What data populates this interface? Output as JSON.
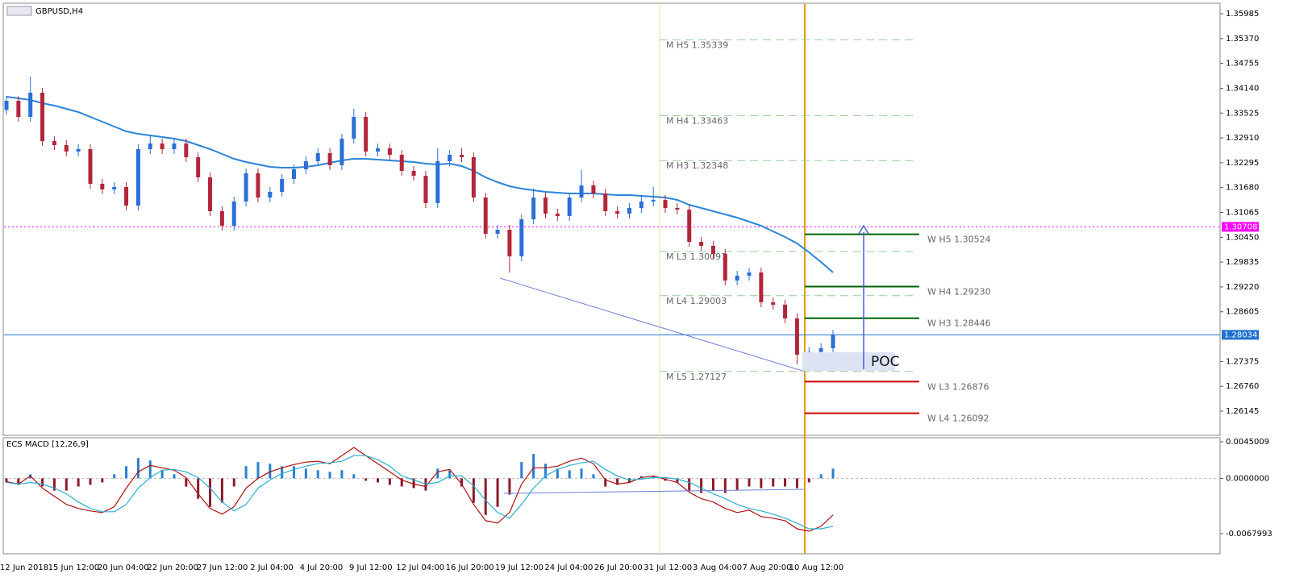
{
  "chart_data": [
    {
      "type": "candlestick",
      "title": "GBPUSD,H4",
      "up_color": "#2a6fd6",
      "down_color": "#b3263a",
      "ylim": [
        1.25546,
        1.36225
      ],
      "yticks": [
        1.35985,
        {
          "value": 1.3537,
          "label": "1.35370"
        },
        1.34755,
        {
          "value": 1.3414,
          "label": "1.34140"
        },
        1.33525,
        {
          "value": 1.3291,
          "label": "1.32910"
        },
        1.32295,
        {
          "value": 1.3168,
          "label": "1.31680"
        },
        1.31065,
        {
          "value": 1.3045,
          "label": "1.30450"
        },
        1.29835,
        {
          "value": 1.2922,
          "label": "1.29220"
        },
        1.28605,
        1.27375,
        {
          "value": 1.2676,
          "label": "1.26760"
        },
        1.26145
      ],
      "open": [
        1.336,
        1.3383,
        1.3343,
        1.34029,
        1.32832,
        1.32732,
        1.32572,
        1.32632,
        1.31774,
        1.31634,
        1.31694,
        1.31235,
        1.32632,
        1.32772,
        1.32632,
        1.32772,
        1.32432,
        1.31933,
        1.31095,
        1.30736,
        1.31335,
        1.32033,
        1.31434,
        1.31574,
        1.31893,
        1.32133,
        1.32333,
        1.32532,
        1.32233,
        1.32891,
        1.3343,
        1.32572,
        1.32652,
        1.32492,
        1.32093,
        1.31973,
        1.31295,
        1.32333,
        1.32492,
        1.32432,
        1.31434,
        1.30536,
        1.30636,
        1.29977,
        1.30895,
        1.31434,
        1.31035,
        1.30975,
        1.31434,
        1.31734,
        1.31534,
        1.31095,
        1.31035,
        1.31175,
        1.31335,
        1.31375,
        1.31175,
        1.31135,
        1.30337,
        1.30237,
        1.30037,
        1.29379,
        1.29498,
        1.29578,
        1.2884,
        1.2878,
        1.2844,
        1.27542,
        1.2761,
        1.27702
      ],
      "high": [
        1.3395,
        1.3395,
        1.34429,
        1.34149,
        1.32952,
        1.32852,
        1.32752,
        1.32752,
        1.31894,
        1.31814,
        1.31814,
        1.32752,
        1.32992,
        1.32892,
        1.32892,
        1.32892,
        1.32552,
        1.32053,
        1.31215,
        1.31455,
        1.32153,
        1.32153,
        1.31694,
        1.32013,
        1.32253,
        1.32453,
        1.32652,
        1.32652,
        1.33011,
        1.3363,
        1.3355,
        1.32772,
        1.32772,
        1.32612,
        1.32213,
        1.32093,
        1.32653,
        1.32612,
        1.32652,
        1.32552,
        1.31554,
        1.30756,
        1.30756,
        1.31015,
        1.31654,
        1.31554,
        1.31155,
        1.31554,
        1.32114,
        1.31854,
        1.31654,
        1.31215,
        1.31295,
        1.31455,
        1.31695,
        1.31495,
        1.31295,
        1.31255,
        1.30457,
        1.30357,
        1.30157,
        1.29618,
        1.29698,
        1.29698,
        1.2896,
        1.289,
        1.2856,
        1.2773,
        1.27822,
        1.28154
      ],
      "low": [
        1.3348,
        1.3331,
        1.3331,
        1.32712,
        1.32612,
        1.32452,
        1.32452,
        1.31654,
        1.31514,
        1.31514,
        1.31115,
        1.31115,
        1.32512,
        1.32512,
        1.32512,
        1.32312,
        1.31813,
        1.30975,
        1.30616,
        1.30616,
        1.31215,
        1.31314,
        1.31314,
        1.31454,
        1.31773,
        1.32013,
        1.32213,
        1.32113,
        1.32113,
        1.32771,
        1.32452,
        1.32452,
        1.32372,
        1.31973,
        1.31853,
        1.31175,
        1.31175,
        1.32213,
        1.32312,
        1.31314,
        1.30416,
        1.30416,
        1.29577,
        1.29857,
        1.30775,
        1.30915,
        1.30855,
        1.30855,
        1.31314,
        1.31414,
        1.30975,
        1.30915,
        1.30915,
        1.31055,
        1.31215,
        1.31055,
        1.31015,
        1.30217,
        1.30117,
        1.29917,
        1.29259,
        1.29259,
        1.29378,
        1.2872,
        1.2866,
        1.2832,
        1.273,
        1.27422,
        1.2749,
        1.27582
      ],
      "close": [
        1.3383,
        1.3343,
        1.34029,
        1.32832,
        1.32732,
        1.32572,
        1.32632,
        1.31774,
        1.31634,
        1.31694,
        1.31235,
        1.32632,
        1.32772,
        1.32632,
        1.32772,
        1.32432,
        1.31933,
        1.31095,
        1.30736,
        1.31335,
        1.32033,
        1.31434,
        1.31574,
        1.31893,
        1.32133,
        1.32333,
        1.32532,
        1.32233,
        1.32891,
        1.3343,
        1.32572,
        1.32652,
        1.32492,
        1.32093,
        1.31973,
        1.31295,
        1.32333,
        1.32492,
        1.32432,
        1.31434,
        1.30536,
        1.30636,
        1.29977,
        1.30895,
        1.31434,
        1.31035,
        1.30975,
        1.31434,
        1.31734,
        1.31534,
        1.31095,
        1.31035,
        1.31175,
        1.31335,
        1.31375,
        1.31175,
        1.31135,
        1.30337,
        1.30237,
        1.30037,
        1.29379,
        1.29498,
        1.29578,
        1.2884,
        1.2878,
        1.2844,
        1.27542,
        1.2761,
        1.27702,
        1.28034
      ],
      "series": [
        {
          "color": "#2b84d8",
          "values": [
            1.33929,
            1.3389,
            1.3385,
            1.3377,
            1.3371,
            1.3363,
            1.3355,
            1.3343,
            1.33311,
            1.33191,
            1.33071,
            1.33011,
            1.32971,
            1.32931,
            1.32891,
            1.32832,
            1.32732,
            1.32632,
            1.32512,
            1.32392,
            1.32313,
            1.32253,
            1.32193,
            1.32173,
            1.32173,
            1.32193,
            1.32233,
            1.32293,
            1.32353,
            1.32392,
            1.32392,
            1.32373,
            1.32353,
            1.32333,
            1.32313,
            1.32273,
            1.32253,
            1.32273,
            1.32213,
            1.32093,
            1.31933,
            1.31814,
            1.31714,
            1.31654,
            1.31614,
            1.31574,
            1.31554,
            1.31534,
            1.31534,
            1.31534,
            1.31514,
            1.31494,
            1.31494,
            1.31474,
            1.31454,
            1.31434,
            1.31374,
            1.31255,
            1.31175,
            1.31095,
            1.31015,
            1.30935,
            1.30836,
            1.30736,
            1.30596,
            1.30456,
            1.30297,
            1.30077,
            1.29838,
            1.29578
          ]
        }
      ],
      "monthly_color": "#99cc99",
      "monthly_levels": [
        {
          "label": "M H5 1.35339",
          "value": 1.35339
        },
        {
          "label": "M H4 1.33463",
          "value": 1.33463
        },
        {
          "label": "M H3 1.32348",
          "value": 1.32348
        },
        {
          "label": "M L3 1.30097",
          "value": 1.30097
        },
        {
          "label": "M L4 1.29003",
          "value": 1.29003
        },
        {
          "label": "M L5 1.27127",
          "value": 1.27127
        }
      ],
      "weekly_levels": [
        {
          "label": "W H5 1.30524",
          "value": 1.30524,
          "color": "#006400"
        },
        {
          "label": "W H4 1.29230",
          "value": 1.2923,
          "color": "#006400"
        },
        {
          "label": "W H3 1.28446",
          "value": 1.28446,
          "color": "#006400"
        },
        {
          "label": "W L3 1.26876",
          "value": 1.26876,
          "color": "#cc0000"
        },
        {
          "label": "W L4 1.26092",
          "value": 1.26092,
          "color": "#cc0000"
        }
      ],
      "price_lines": [
        {
          "value": 1.30708,
          "color": "#ff00ff",
          "dotted": true
        },
        {
          "value": 1.28034,
          "color": "#1e70d0",
          "dotted": false
        }
      ],
      "poc_label": "POC",
      "time_labels": [
        "12 Jun 2018",
        "15 Jun 12:00",
        "20 Jun 04:00",
        "22 Jun 20:00",
        "27 Jun 12:00",
        "2 Jul 04:00",
        "4 Jul 20:00",
        "9 Jul 12:00",
        "12 Jul 04:00",
        "16 Jul 20:00",
        "19 Jul 12:00",
        "24 Jul 04:00",
        "26 Jul 20:00",
        "31 Jul 12:00",
        "3 Aug 04:00",
        "7 Aug 20:00",
        "10 Aug 12:00"
      ]
    },
    {
      "type": "macd",
      "title": "ECS MACD [12,26,9]",
      "up_color": "#2a7fd0",
      "down_color": "#8b1a2b",
      "ylim": [
        -0.0092775,
        0.0049965
      ],
      "yticks": [
        0.0045009,
        {
          "value": 0,
          "label": "0.0000000"
        },
        -0.0067993
      ],
      "values": [
        -0.0005,
        -0.0008,
        0.0005,
        -0.001,
        -0.0015,
        -0.0015,
        -0.001,
        -0.0008,
        -0.0005,
        0.0005,
        0.0015,
        0.0025,
        0.0022,
        0.001,
        0.0005,
        -0.001,
        -0.0025,
        -0.0035,
        -0.003,
        -0.001,
        0.0015,
        0.002,
        0.0018,
        0.0015,
        0.0015,
        0.0012,
        0.001,
        0.0008,
        0.001,
        0.0005,
        -0.0003,
        -0.0005,
        -0.0008,
        -0.001,
        -0.0012,
        -0.0015,
        0.0012,
        0.001,
        -0.001,
        -0.003,
        -0.0045,
        -0.0035,
        -0.002,
        0.002,
        0.003,
        0.0018,
        0.0012,
        0.001,
        0.0012,
        0.0005,
        -0.001,
        -0.0008,
        -0.0005,
        0.0003,
        0.0003,
        -0.0003,
        -0.0005,
        -0.0015,
        -0.0018,
        -0.0015,
        -0.0018,
        -0.0015,
        -0.001,
        -0.0012,
        -0.001,
        -0.001,
        -0.0012,
        -0.0005,
        0.0005,
        0.0012
      ],
      "series": [
        {
          "color": "#b01010",
          "values": [
            -0.0004,
            -0.0007,
            0.0003,
            -0.0012,
            -0.0022,
            -0.0032,
            -0.0037,
            -0.004,
            -0.0042,
            -0.0035,
            -0.0012,
            0.0008,
            0.0016,
            0.0013,
            0.001,
            0.0001,
            -0.0019,
            -0.0037,
            -0.0044,
            -0.0035,
            -0.0012,
            0,
            0.0008,
            0.0013,
            0.0017,
            0.002,
            0.0021,
            0.0018,
            0.0028,
            0.0038,
            0.0028,
            0.0018,
            0.0008,
            -0.0002,
            -0.0007,
            -0.001,
            0.0008,
            0.0011,
            -0.0007,
            -0.0032,
            -0.0052,
            -0.0055,
            -0.0042,
            -0.0007,
            0.0013,
            0.0013,
            0.0015,
            0.0021,
            0.0025,
            0.0018,
            -0.0002,
            -0.0007,
            -0.0005,
            0.0001,
            0.0003,
            -0.0001,
            -0.0005,
            -0.0017,
            -0.0025,
            -0.0029,
            -0.0037,
            -0.0042,
            -0.0039,
            -0.0047,
            -0.0049,
            -0.0052,
            -0.0062,
            -0.0065,
            -0.0059,
            -0.0045
          ]
        },
        {
          "color": "#2ab0d0",
          "values": [
            -0.0005,
            -0.0007,
            -0.0005,
            -0.0007,
            -0.0012,
            -0.0019,
            -0.0029,
            -0.0037,
            -0.0041,
            -0.0041,
            -0.0032,
            -0.0012,
            0.0001,
            0.001,
            0.0011,
            0.0008,
            0.0001,
            -0.0012,
            -0.0029,
            -0.004,
            -0.0032,
            -0.0012,
            -0.0002,
            0.0006,
            0.0011,
            0.0015,
            0.0018,
            0.0019,
            0.0021,
            0.0028,
            0.0028,
            0.0023,
            0.0015,
            0.0003,
            -0.0002,
            -0.0007,
            -0.0005,
            0.0003,
            0.0003,
            -0.0009,
            -0.0027,
            -0.0042,
            -0.0049,
            -0.0032,
            -0.0012,
            0.0003,
            0.0011,
            0.0016,
            0.0019,
            0.0021,
            0.0011,
            0.0003,
            -0.0002,
            -0.0001,
            0.0001,
            0.0001,
            -0.0001,
            -0.0005,
            -0.0012,
            -0.0019,
            -0.0025,
            -0.0032,
            -0.0037,
            -0.004,
            -0.0044,
            -0.0049,
            -0.0055,
            -0.0062,
            -0.0062,
            -0.0059
          ]
        }
      ]
    }
  ]
}
